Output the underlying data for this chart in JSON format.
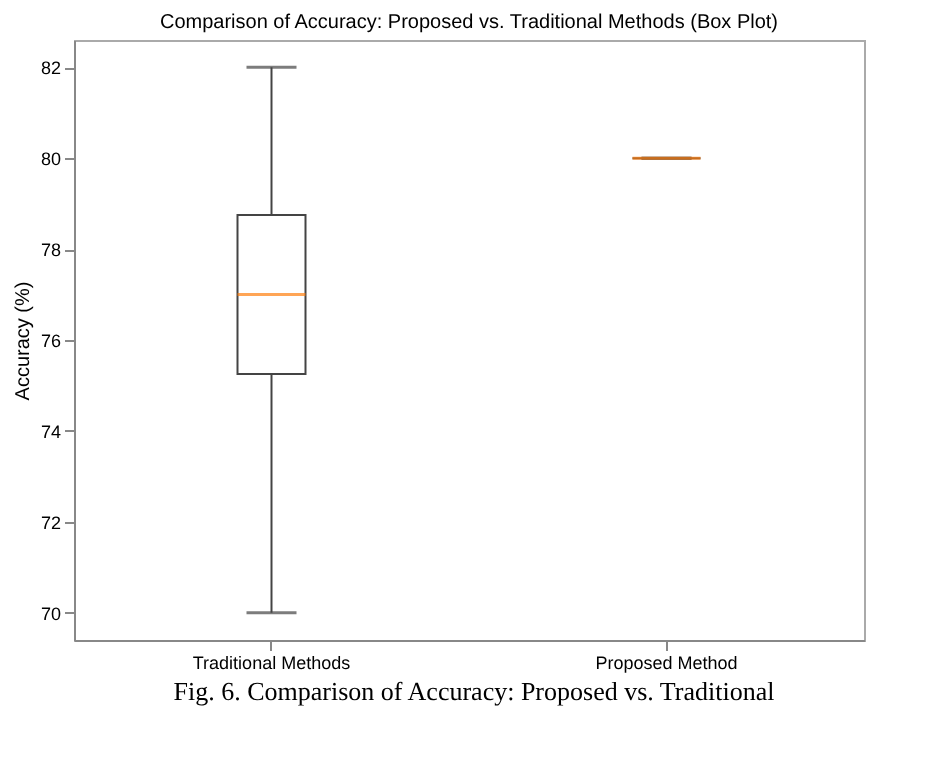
{
  "chart_data": {
    "type": "box",
    "title": "Comparison of Accuracy: Proposed vs. Traditional Methods (Box Plot)",
    "ylabel": "Accuracy (%)",
    "categories": [
      "Traditional Methods",
      "Proposed Method"
    ],
    "boxes": [
      {
        "low": 70,
        "q1": 75.25,
        "median": 77,
        "q3": 78.75,
        "high": 82
      },
      {
        "low": 80,
        "q1": 80,
        "median": 80,
        "q3": 80,
        "high": 80
      }
    ],
    "color": "#444444",
    "ylim": [
      69.4,
      82.6
    ],
    "yticks": [
      70,
      72,
      74,
      76,
      78,
      80,
      82
    ],
    "annotations": [
      "Fig. 6. Comparison of Accuracy: Proposed vs. Traditional"
    ]
  }
}
